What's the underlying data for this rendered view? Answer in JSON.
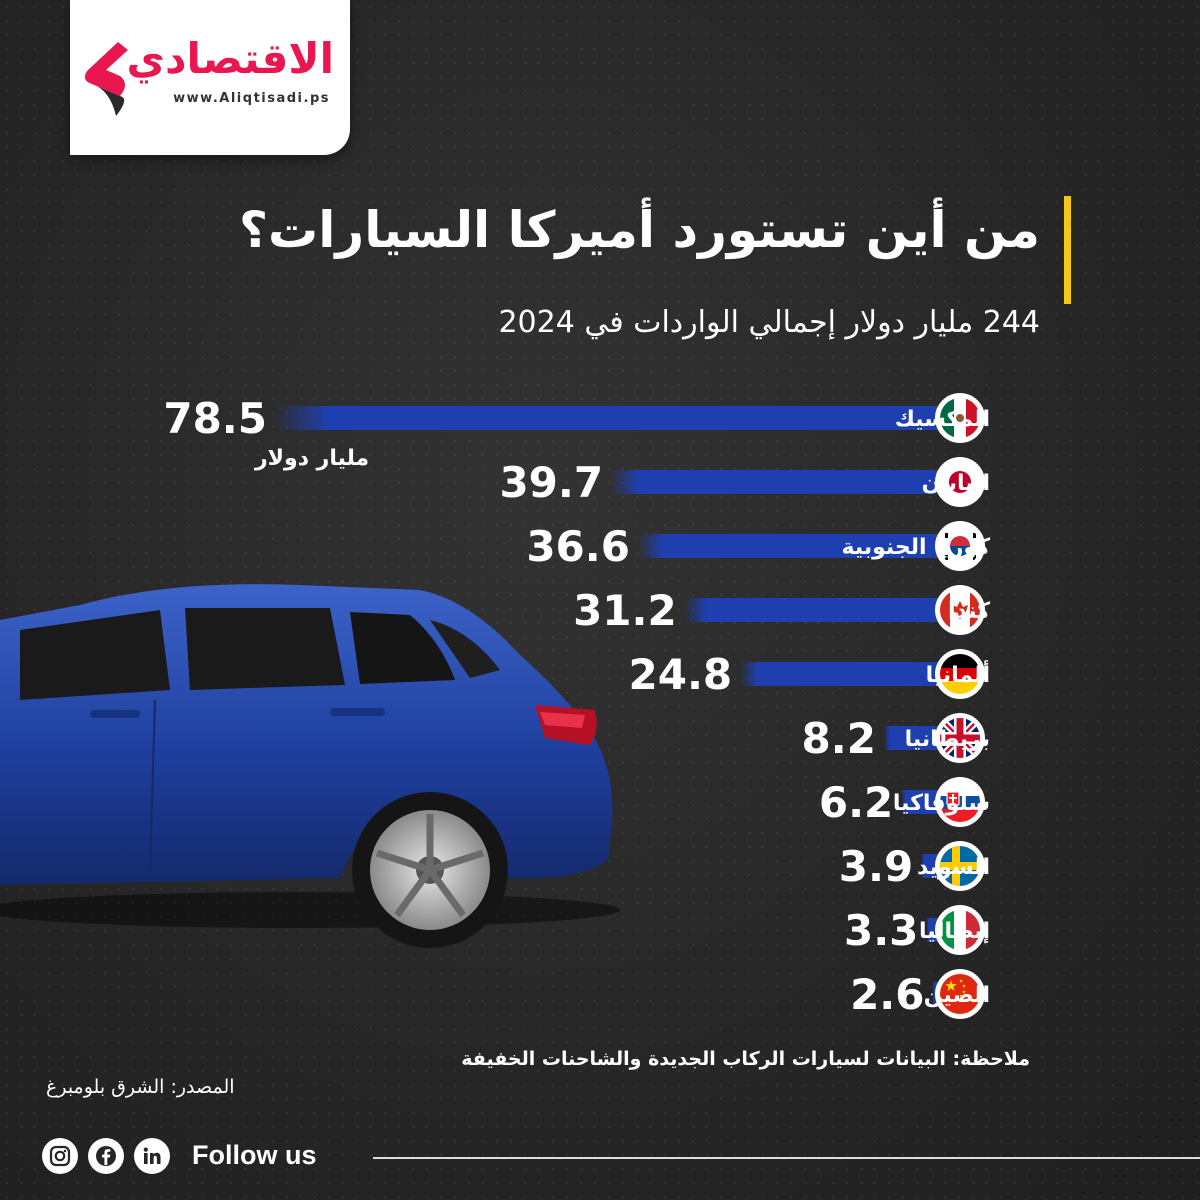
{
  "brand": {
    "name": "الاقتصادي",
    "url": "www.Aliqtisadi.ps",
    "color": "#e8174f"
  },
  "header": {
    "title": "من أين تستورد أميركا السيارات؟",
    "subtitle": "244 مليار دولار إجمالي الواردات في 2024",
    "accent_color": "#f5c518"
  },
  "chart_data": {
    "type": "bar",
    "orientation": "horizontal",
    "unit_label": "مليار دولار",
    "bar_color": "#1e3fb0",
    "categories": [
      "المكسيك",
      "اليابان",
      "كوريا الجنوبية",
      "كندا",
      "ألمانيا",
      "بريطانيا",
      "سلوفاكيا",
      "السويد",
      "إيطاليا",
      "الصين"
    ],
    "values": [
      78.5,
      39.7,
      36.6,
      31.2,
      24.8,
      8.2,
      6.2,
      3.9,
      3.3,
      2.6
    ],
    "value_labels": [
      "78.5",
      "39.7",
      "36.6",
      "31.2",
      "24.8",
      "8.2",
      "6.2",
      "3.9",
      "3.3",
      "2.6"
    ],
    "flag_icons": [
      "mexico-flag-icon",
      "japan-flag-icon",
      "south-korea-flag-icon",
      "canada-flag-icon",
      "germany-flag-icon",
      "uk-flag-icon",
      "slovakia-flag-icon",
      "sweden-flag-icon",
      "italy-flag-icon",
      "china-flag-icon"
    ]
  },
  "footer": {
    "note": "ملاحظة: البيانات لسيارات الركاب الجديدة والشاحنات الخفيفة",
    "source": "المصدر: الشرق بلومبرغ",
    "follow_label": "Follow us",
    "social_icons": [
      "instagram-icon",
      "facebook-icon",
      "linkedin-icon"
    ]
  }
}
